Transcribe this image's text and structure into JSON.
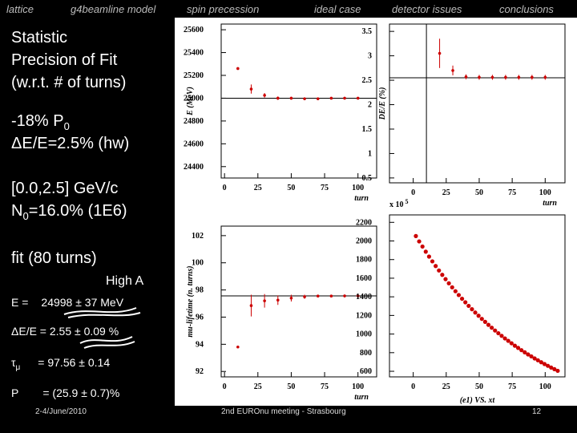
{
  "header": {
    "tabs": [
      "lattice",
      "g4beamline model",
      "spin precession",
      "ideal case",
      "detector issues",
      "conclusions"
    ]
  },
  "left_panel": {
    "title_lines": [
      "Statistic",
      "Precision of Fit",
      "(w.r.t. # of turns)"
    ],
    "polarization": {
      "text": "-18% P",
      "sub": "0"
    },
    "energy_spread": "ΔE/E=2.5% (hw)",
    "momentum_range": "[0.0,2.5] GeV/c",
    "n0": {
      "text": "N",
      "sub": "0",
      "rest": "=16.0% (1E6)"
    },
    "fit_label": "fit (80 turns)",
    "high_a": "High A",
    "energy": {
      "label": "E =",
      "text": "24998 ± 37 MeV"
    },
    "spread": "ΔE/E = 2.55 ± 0.09 %",
    "lifetime": {
      "symbol": "τ",
      "sub": "μ",
      "text": "= 97.56 ± 0.14"
    },
    "pol": {
      "symbol": "P",
      "text": "= (25.9 ± 0.7)%"
    }
  },
  "footer": {
    "date": "2-4/June/2010",
    "event": "2nd EUROnu meeting - Strasbourg",
    "page": "12"
  },
  "chart_data": [
    {
      "type": "scatter",
      "y_label": "E (MeV)",
      "x_label": "turn",
      "xlim": [
        -2.5,
        114
      ],
      "xticks": [
        0,
        25,
        50,
        75,
        100
      ],
      "ylim": [
        24300,
        25650
      ],
      "yticks": [
        24400,
        24600,
        24800,
        25000,
        25200,
        25400,
        25600
      ],
      "hline": 25000,
      "x": [
        10,
        20,
        30,
        40,
        50,
        60,
        70,
        80,
        90,
        100
      ],
      "series": [
        {
          "color": "#cc0000",
          "values": [
            25260,
            25080,
            25025,
            25000,
            25000,
            24995,
            24995,
            25000,
            25000,
            25000
          ],
          "errors": [
            5,
            40,
            20,
            15,
            12,
            10,
            8,
            8,
            8,
            10
          ]
        }
      ]
    },
    {
      "type": "scatter",
      "y_label": "DE/E (%)",
      "x_label": "turn",
      "xlim": [
        -18,
        115
      ],
      "xticks": [
        0,
        25,
        50,
        75,
        100
      ],
      "ylim": [
        0.4,
        3.65
      ],
      "yticks": [
        0.5,
        1,
        1.5,
        2,
        2.5,
        3,
        3.5
      ],
      "hline": 2.55,
      "vline": 10,
      "x": [
        20,
        30,
        40,
        50,
        60,
        70,
        80,
        90,
        100
      ],
      "series": [
        {
          "color": "#cc0000",
          "values": [
            3.05,
            2.7,
            2.57,
            2.56,
            2.56,
            2.56,
            2.56,
            2.56,
            2.56
          ],
          "errors": [
            0.3,
            0.1,
            0.05,
            0.05,
            0.05,
            0.05,
            0.05,
            0.05,
            0.05
          ]
        }
      ]
    },
    {
      "type": "scatter",
      "y_label": "mu-lifetime (n. turns)",
      "x_label": "turn",
      "xlim": [
        -2.5,
        114
      ],
      "xticks": [
        0,
        25,
        50,
        75,
        100
      ],
      "ylim": [
        91.6,
        102.7
      ],
      "yticks": [
        92,
        94,
        96,
        98,
        100,
        102
      ],
      "hline": 97.56,
      "x": [
        10,
        20,
        30,
        40,
        50,
        60,
        70,
        80,
        90,
        100
      ],
      "series": [
        {
          "color": "#cc0000",
          "values": [
            93.8,
            96.85,
            97.2,
            97.25,
            97.4,
            97.5,
            97.55,
            97.55,
            97.56,
            97.56
          ],
          "errors": [
            0.05,
            0.8,
            0.5,
            0.35,
            0.25,
            0.15,
            0.1,
            0.1,
            0.1,
            0.1
          ]
        }
      ]
    },
    {
      "type": "scatter",
      "x_label": "(e1) VS. xt",
      "y_multiplier": {
        "text": "x 10",
        "sup": "5"
      },
      "xlim": [
        -18,
        115
      ],
      "xticks": [
        0,
        25,
        50,
        75,
        100
      ],
      "ylim": [
        540,
        2280
      ],
      "yticks": [
        600,
        800,
        1000,
        1200,
        1400,
        1600,
        1800,
        2000,
        2200
      ],
      "x": [
        2,
        4.5,
        7,
        9.5,
        12,
        14.5,
        17,
        19.5,
        22,
        24.5,
        27,
        29.5,
        32,
        34.5,
        37,
        39.5,
        42,
        44.5,
        47,
        49.5,
        52,
        54.5,
        57,
        59.5,
        62,
        64.5,
        67,
        69.5,
        72,
        74.5,
        77,
        79.5,
        82,
        84.5,
        87,
        89.5,
        92,
        94.5,
        97,
        99.5,
        102,
        104.5,
        107,
        109.5
      ],
      "series": [
        {
          "color": "#cc0000",
          "values": [
            2053,
            1995,
            1940,
            1885,
            1832,
            1781,
            1731,
            1683,
            1636,
            1590,
            1545,
            1502,
            1460,
            1419,
            1379,
            1341,
            1303,
            1267,
            1231,
            1197,
            1163,
            1131,
            1099,
            1068,
            1038,
            1009,
            981,
            953,
            927,
            901,
            875,
            851,
            827,
            804,
            781,
            760,
            738,
            718,
            697,
            678,
            659,
            640,
            623,
            605
          ]
        }
      ]
    }
  ]
}
